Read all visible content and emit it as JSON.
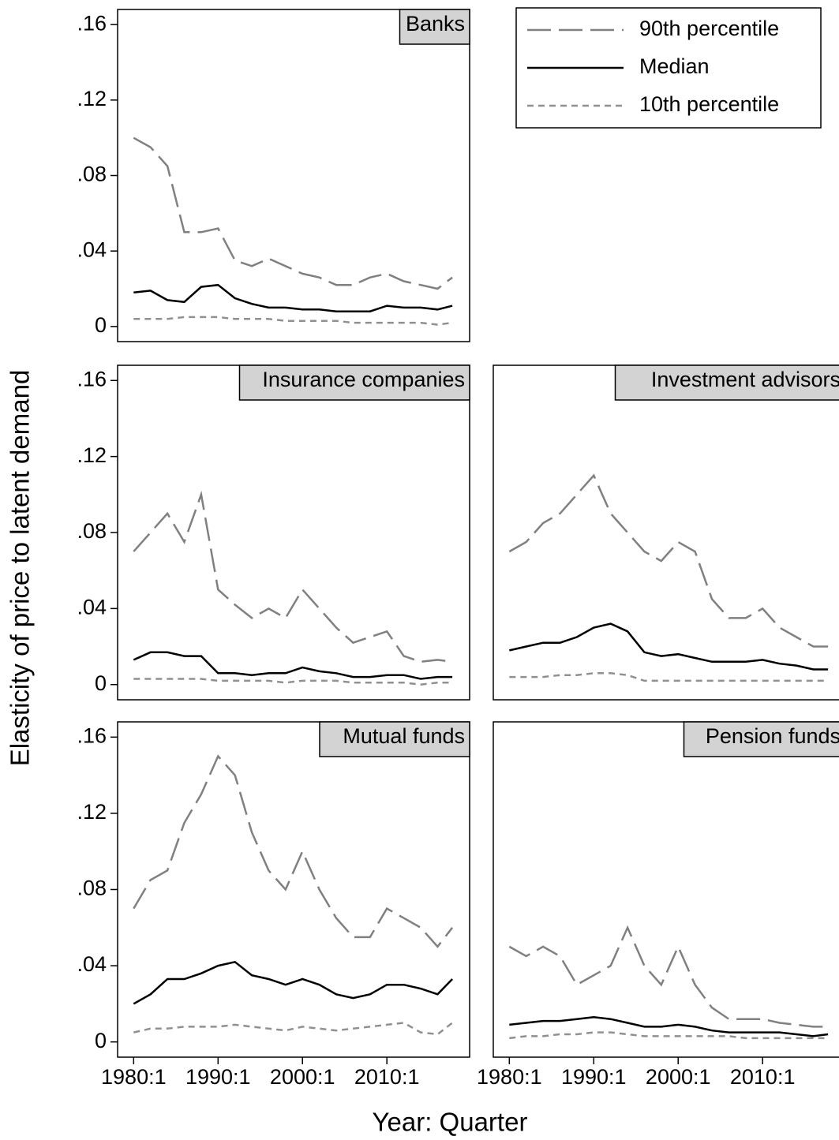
{
  "axis_titles": {
    "y": "Elasticity of price to latent demand",
    "x": "Year: Quarter"
  },
  "chart_data": [
    {
      "type": "line",
      "title": "Banks",
      "legend": "top-right",
      "x": [
        1980,
        1982,
        1984,
        1986,
        1988,
        1990,
        1992,
        1994,
        1996,
        1998,
        2000,
        2002,
        2004,
        2006,
        2008,
        2010,
        2012,
        2014,
        2016,
        2017.75
      ],
      "xlim": [
        1978.1,
        2019.8
      ],
      "ylim": [
        -0.008,
        0.168
      ],
      "yticks": [
        0,
        {
          "value": 0.04,
          "label": ".04"
        },
        {
          "value": 0.08,
          "label": ".08"
        },
        {
          "value": 0.12,
          "label": ".12"
        },
        {
          "value": 0.16,
          "label": ".16"
        }
      ],
      "series": [
        {
          "name": "90th percentile",
          "color": "#808080",
          "dash": "long",
          "values": [
            0.1,
            0.095,
            0.085,
            0.05,
            0.05,
            0.052,
            0.035,
            0.032,
            0.036,
            0.032,
            0.028,
            0.026,
            0.022,
            0.022,
            0.026,
            0.028,
            0.024,
            0.022,
            0.02,
            0.026
          ]
        },
        {
          "name": "Median",
          "color": "#000000",
          "dash": "solid",
          "values": [
            0.018,
            0.019,
            0.014,
            0.013,
            0.021,
            0.022,
            0.015,
            0.012,
            0.01,
            0.01,
            0.009,
            0.009,
            0.008,
            0.008,
            0.008,
            0.011,
            0.01,
            0.01,
            0.009,
            0.011
          ]
        },
        {
          "name": "10th percentile",
          "color": "#909090",
          "dash": "short",
          "values": [
            0.004,
            0.004,
            0.004,
            0.005,
            0.005,
            0.005,
            0.004,
            0.004,
            0.004,
            0.003,
            0.003,
            0.003,
            0.003,
            0.002,
            0.002,
            0.002,
            0.002,
            0.002,
            0.001,
            0.002
          ]
        }
      ]
    },
    {
      "type": "line",
      "title": "Insurance companies",
      "x": [
        1980,
        1982,
        1984,
        1986,
        1988,
        1990,
        1992,
        1994,
        1996,
        1998,
        2000,
        2002,
        2004,
        2006,
        2008,
        2010,
        2012,
        2014,
        2016,
        2017.75
      ],
      "xlim": [
        1978.1,
        2019.8
      ],
      "ylim": [
        -0.008,
        0.168
      ],
      "yticks": [
        0,
        {
          "value": 0.04,
          "label": ".04"
        },
        {
          "value": 0.08,
          "label": ".08"
        },
        {
          "value": 0.12,
          "label": ".12"
        },
        {
          "value": 0.16,
          "label": ".16"
        }
      ],
      "series": [
        {
          "name": "90th percentile",
          "color": "#808080",
          "dash": "long",
          "values": [
            0.07,
            0.08,
            0.09,
            0.075,
            0.1,
            0.05,
            0.042,
            0.035,
            0.04,
            0.035,
            0.05,
            0.04,
            0.03,
            0.022,
            0.025,
            0.028,
            0.015,
            0.012,
            0.013,
            0.012
          ]
        },
        {
          "name": "Median",
          "color": "#000000",
          "dash": "solid",
          "values": [
            0.013,
            0.017,
            0.017,
            0.015,
            0.015,
            0.006,
            0.006,
            0.005,
            0.006,
            0.006,
            0.009,
            0.007,
            0.006,
            0.004,
            0.004,
            0.005,
            0.005,
            0.003,
            0.004,
            0.004
          ]
        },
        {
          "name": "10th percentile",
          "color": "#909090",
          "dash": "short",
          "values": [
            0.003,
            0.003,
            0.003,
            0.003,
            0.003,
            0.002,
            0.002,
            0.002,
            0.002,
            0.001,
            0.002,
            0.002,
            0.002,
            0.001,
            0.001,
            0.001,
            0.001,
            0,
            0.001,
            0.001
          ]
        }
      ]
    },
    {
      "type": "line",
      "title": "Investment advisors",
      "x": [
        1980,
        1982,
        1984,
        1986,
        1988,
        1990,
        1992,
        1994,
        1996,
        1998,
        2000,
        2002,
        2004,
        2006,
        2008,
        2010,
        2012,
        2014,
        2016,
        2017.75
      ],
      "xlim": [
        1978.1,
        2019.8
      ],
      "ylim": [
        -0.008,
        0.168
      ],
      "series": [
        {
          "name": "90th percentile",
          "color": "#808080",
          "dash": "long",
          "values": [
            0.07,
            0.075,
            0.085,
            0.09,
            0.1,
            0.11,
            0.09,
            0.08,
            0.07,
            0.065,
            0.075,
            0.07,
            0.045,
            0.035,
            0.035,
            0.04,
            0.03,
            0.025,
            0.02,
            0.02
          ]
        },
        {
          "name": "Median",
          "color": "#000000",
          "dash": "solid",
          "values": [
            0.018,
            0.02,
            0.022,
            0.022,
            0.025,
            0.03,
            0.032,
            0.028,
            0.017,
            0.015,
            0.016,
            0.014,
            0.012,
            0.012,
            0.012,
            0.013,
            0.011,
            0.01,
            0.008,
            0.008
          ]
        },
        {
          "name": "10th percentile",
          "color": "#909090",
          "dash": "short",
          "values": [
            0.004,
            0.004,
            0.004,
            0.005,
            0.005,
            0.006,
            0.006,
            0.005,
            0.002,
            0.002,
            0.002,
            0.002,
            0.002,
            0.002,
            0.002,
            0.002,
            0.002,
            0.002,
            0.002,
            0.002
          ]
        }
      ]
    },
    {
      "type": "line",
      "title": "Mutual funds",
      "x": [
        1980,
        1982,
        1984,
        1986,
        1988,
        1990,
        1992,
        1994,
        1996,
        1998,
        2000,
        2002,
        2004,
        2006,
        2008,
        2010,
        2012,
        2014,
        2016,
        2017.75
      ],
      "xlim": [
        1978.1,
        2019.8
      ],
      "ylim": [
        -0.008,
        0.168
      ],
      "xticks": [
        {
          "value": 1980,
          "label": "1980:1"
        },
        {
          "value": 1990,
          "label": "1990:1"
        },
        {
          "value": 2000,
          "label": "2000:1"
        },
        {
          "value": 2010,
          "label": "2010:1"
        }
      ],
      "yticks": [
        0,
        {
          "value": 0.04,
          "label": ".04"
        },
        {
          "value": 0.08,
          "label": ".08"
        },
        {
          "value": 0.12,
          "label": ".12"
        },
        {
          "value": 0.16,
          "label": ".16"
        }
      ],
      "series": [
        {
          "name": "90th percentile",
          "color": "#808080",
          "dash": "long",
          "values": [
            0.07,
            0.085,
            0.09,
            0.115,
            0.13,
            0.15,
            0.14,
            0.11,
            0.09,
            0.08,
            0.1,
            0.08,
            0.065,
            0.055,
            0.055,
            0.07,
            0.065,
            0.06,
            0.05,
            0.06
          ]
        },
        {
          "name": "Median",
          "color": "#000000",
          "dash": "solid",
          "values": [
            0.02,
            0.025,
            0.033,
            0.033,
            0.036,
            0.04,
            0.042,
            0.035,
            0.033,
            0.03,
            0.033,
            0.03,
            0.025,
            0.023,
            0.025,
            0.03,
            0.03,
            0.028,
            0.025,
            0.033
          ]
        },
        {
          "name": "10th percentile",
          "color": "#909090",
          "dash": "short",
          "values": [
            0.005,
            0.007,
            0.007,
            0.008,
            0.008,
            0.008,
            0.009,
            0.008,
            0.007,
            0.006,
            0.008,
            0.007,
            0.006,
            0.007,
            0.008,
            0.009,
            0.01,
            0.005,
            0.004,
            0.01
          ]
        }
      ]
    },
    {
      "type": "line",
      "title": "Pension funds",
      "x": [
        1980,
        1982,
        1984,
        1986,
        1988,
        1990,
        1992,
        1994,
        1996,
        1998,
        2000,
        2002,
        2004,
        2006,
        2008,
        2010,
        2012,
        2014,
        2016,
        2017.75
      ],
      "xlim": [
        1978.1,
        2019.8
      ],
      "ylim": [
        -0.008,
        0.168
      ],
      "xticks": [
        {
          "value": 1980,
          "label": "1980:1"
        },
        {
          "value": 1990,
          "label": "1990:1"
        },
        {
          "value": 2000,
          "label": "2000:1"
        },
        {
          "value": 2010,
          "label": "2010:1"
        }
      ],
      "series": [
        {
          "name": "90th percentile",
          "color": "#808080",
          "dash": "long",
          "values": [
            0.05,
            0.045,
            0.05,
            0.045,
            0.03,
            0.035,
            0.04,
            0.06,
            0.04,
            0.03,
            0.05,
            0.03,
            0.018,
            0.012,
            0.012,
            0.012,
            0.01,
            0.009,
            0.008,
            0.008
          ]
        },
        {
          "name": "Median",
          "color": "#000000",
          "dash": "solid",
          "values": [
            0.009,
            0.01,
            0.011,
            0.011,
            0.012,
            0.013,
            0.012,
            0.01,
            0.008,
            0.008,
            0.009,
            0.008,
            0.006,
            0.005,
            0.005,
            0.005,
            0.005,
            0.004,
            0.003,
            0.004
          ]
        },
        {
          "name": "10th percentile",
          "color": "#909090",
          "dash": "short",
          "values": [
            0.002,
            0.003,
            0.003,
            0.004,
            0.004,
            0.005,
            0.005,
            0.004,
            0.003,
            0.003,
            0.003,
            0.003,
            0.003,
            0.003,
            0.002,
            0.002,
            0.002,
            0.002,
            0.002,
            0.002
          ]
        }
      ]
    }
  ]
}
